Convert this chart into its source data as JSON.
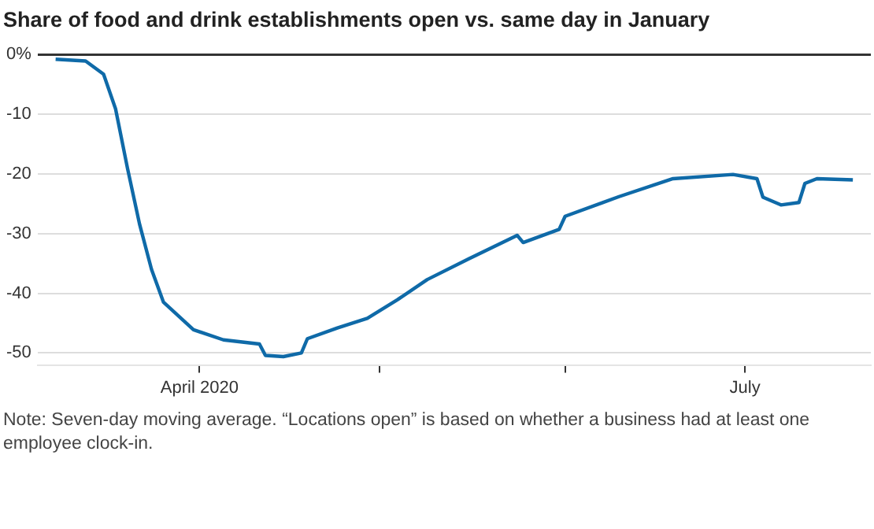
{
  "chart_data": {
    "type": "line",
    "title": "Share of food and drink establishments open vs. same day in January",
    "x": [
      "2020-03-08",
      "2020-03-13",
      "2020-03-16",
      "2020-03-18",
      "2020-03-20",
      "2020-03-22",
      "2020-03-24",
      "2020-03-26",
      "2020-03-31",
      "2020-04-05",
      "2020-04-11",
      "2020-04-12",
      "2020-04-15",
      "2020-04-18",
      "2020-04-19",
      "2020-04-24",
      "2020-04-29",
      "2020-05-04",
      "2020-05-09",
      "2020-05-16",
      "2020-05-24",
      "2020-05-25",
      "2020-05-31",
      "2020-06-01",
      "2020-06-10",
      "2020-06-19",
      "2020-06-29",
      "2020-07-03",
      "2020-07-04",
      "2020-07-07",
      "2020-07-10",
      "2020-07-11",
      "2020-07-13",
      "2020-07-19"
    ],
    "series": [
      {
        "color": "#0f6aa8",
        "values": [
          -0.8,
          -1.1,
          -3.3,
          -9.1,
          -19.1,
          -28.4,
          -36,
          -41.5,
          -46.1,
          -47.8,
          -48.5,
          -50.4,
          -50.6,
          -50,
          -47.6,
          -45.8,
          -44.2,
          -41.1,
          -37.7,
          -34.2,
          -30.3,
          -31.5,
          -29.3,
          -27.1,
          -23.8,
          -20.8,
          -20.1,
          -20.8,
          -23.9,
          -25.2,
          -24.8,
          -21.6,
          -20.8,
          -21
        ]
      }
    ],
    "xlim": [
      "2020-03-05",
      "2020-07-22"
    ],
    "xticks": [
      {
        "value": "2020-04-01",
        "label": "April 2020"
      },
      {
        "value": "2020-05-01",
        "label": null
      },
      {
        "value": "2020-06-01",
        "label": null
      },
      {
        "value": "2020-07-01",
        "label": "July"
      }
    ],
    "ylim": [
      -52,
      0
    ],
    "yticks": [
      {
        "value": 0,
        "label": "0%"
      },
      -10,
      -20,
      -30,
      -40,
      -50
    ],
    "grid": "y",
    "legend": false,
    "marker": "none",
    "line_style": "solid",
    "annotations": [
      "Note: Seven-day moving average. “Locations open” is based on whether a business had at least one employee clock-in."
    ]
  }
}
